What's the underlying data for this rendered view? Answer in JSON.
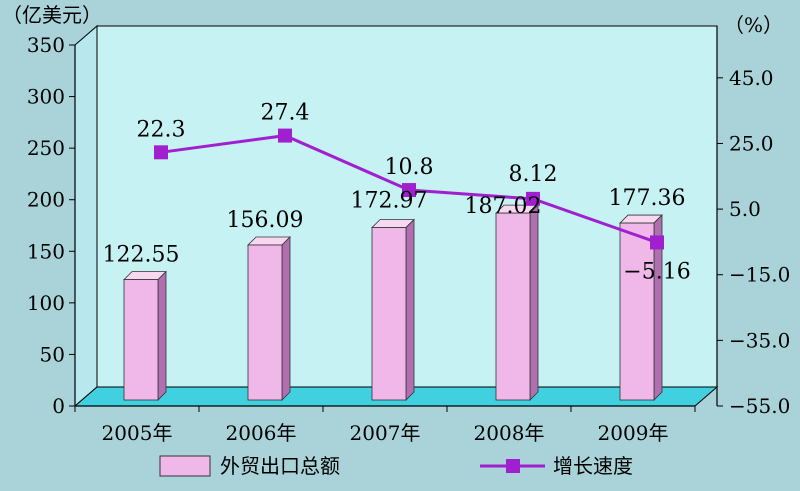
{
  "chart_data": {
    "type": "bar+line",
    "categories": [
      "2005年",
      "2006年",
      "2007年",
      "2008年",
      "2009年"
    ],
    "series": [
      {
        "name": "外贸出口总额",
        "type": "bar",
        "axis": "left",
        "values": [
          122.55,
          156.09,
          172.97,
          187.02,
          177.36
        ],
        "color": "#f0b8e8"
      },
      {
        "name": "增长速度",
        "type": "line",
        "axis": "right",
        "values": [
          22.3,
          27.4,
          10.8,
          8.12,
          -5.16
        ],
        "color": "#a020d0"
      }
    ],
    "data_labels": {
      "bar": [
        "122.55",
        "156.09",
        "172.97",
        "187.02",
        "177.36"
      ],
      "line": [
        "22.3",
        "27.4",
        "10.8",
        "8.12",
        "−5.16"
      ]
    },
    "left_axis": {
      "unit": "（亿美元）",
      "ylim": [
        0,
        350
      ],
      "ticks": [
        "0",
        "50",
        "100",
        "150",
        "200",
        "250",
        "300",
        "350"
      ]
    },
    "right_axis": {
      "unit": "（%）",
      "ylim": [
        -55,
        55
      ],
      "ticks": [
        "−55.0",
        "−35.0",
        "−15.0",
        "5.0",
        "25.0",
        "45.0"
      ]
    },
    "legend": {
      "placement": "bottom",
      "items": [
        "外贸出口总额",
        "增长速度"
      ]
    },
    "grid": false,
    "colors": {
      "plot_bg": "#c6f2f4",
      "floor": "#40d0e0",
      "bar_front": "#f0b8e8",
      "bar_side": "#b070b0",
      "line": "#a020d0",
      "marker": "#a020d0"
    }
  }
}
